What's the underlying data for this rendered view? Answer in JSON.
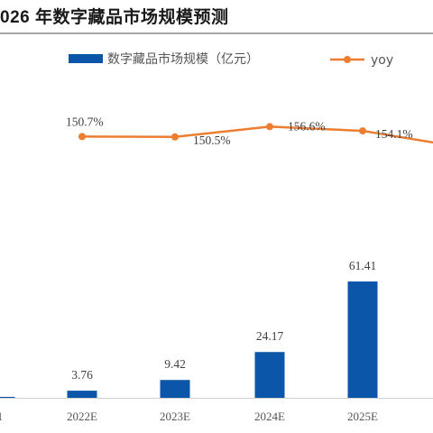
{
  "title": "026 年数字藏品市场规模预测",
  "colors": {
    "bar": "#0b56a8",
    "line": "#ed7d31",
    "axis": "#d0d0d0",
    "rule": "#a6a6a6"
  },
  "chart_data": {
    "type": "bar+line",
    "categories": [
      "1",
      "2022E",
      "2023E",
      "2024E",
      "2025E",
      ""
    ],
    "series": [
      {
        "name": "数字藏品市场规模（亿元）",
        "type": "bar",
        "axis": "left",
        "values": [
          0.5,
          3.76,
          9.42,
          24.17,
          61.41,
          null
        ],
        "data_labels": [
          "",
          "3.76",
          "9.42",
          "24.17",
          "61.41",
          ""
        ]
      },
      {
        "name": "yoy",
        "type": "line",
        "axis": "right",
        "unit": "%",
        "values": [
          null,
          150.7,
          150.5,
          156.6,
          154.1,
          145.0
        ],
        "data_labels": [
          "",
          "150.7%",
          "150.5%",
          "156.6%",
          "154.1%",
          ""
        ]
      }
    ],
    "ylim": [
      0,
      180
    ],
    "y2lim": [
      127.78,
      162.2
    ],
    "grid": false,
    "legend": "top"
  }
}
